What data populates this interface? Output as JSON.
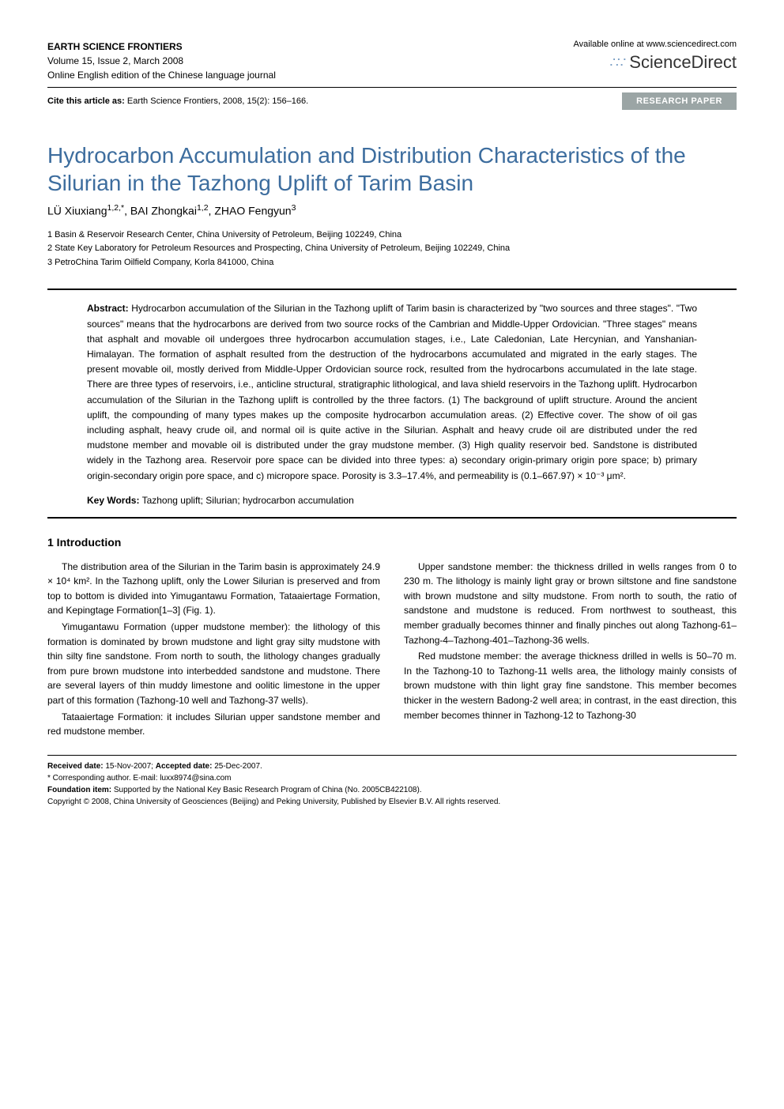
{
  "header": {
    "journal_name": "EARTH SCIENCE FRONTIERS",
    "volume_info": "Volume 15, Issue 2, March 2008",
    "edition_info": "Online English edition of the Chinese language journal",
    "available_text": "Available online at www.sciencedirect.com",
    "sd_brand": "ScienceDirect"
  },
  "citation": {
    "label": "Cite this article as:",
    "text": " Earth Science Frontiers, 2008, 15(2): 156–166.",
    "badge": "RESEARCH PAPER"
  },
  "title": "Hydrocarbon Accumulation and Distribution Characteristics of the Silurian in the Tazhong Uplift of Tarim Basin",
  "authors_html": "LÜ Xiuxiang<sup>1,2,*</sup>, BAI Zhongkai<sup>1,2</sup>, ZHAO Fengyun<sup>3</sup>",
  "affiliations": [
    "1 Basin & Reservoir Research Center, China University of Petroleum, Beijing 102249, China",
    "2 State Key Laboratory for Petroleum Resources and Prospecting, China University of Petroleum, Beijing 102249, China",
    "3 PetroChina Tarim Oilfield Company, Korla 841000, China"
  ],
  "abstract": {
    "label": "Abstract:",
    "text": " Hydrocarbon accumulation of the Silurian in the Tazhong uplift of Tarim basin is characterized by \"two sources and three stages\". \"Two sources\" means that the hydrocarbons are derived from two source rocks of the Cambrian and Middle-Upper Ordovician. \"Three stages\" means that asphalt and movable oil undergoes three hydrocarbon accumulation stages, i.e., Late Caledonian, Late Hercynian, and Yanshanian-Himalayan. The formation of asphalt resulted from the destruction of the hydrocarbons accumulated and migrated in the early stages. The present movable oil, mostly derived from Middle-Upper Ordovician source rock, resulted from the hydrocarbons accumulated in the late stage. There are three types of reservoirs, i.e., anticline structural, stratigraphic lithological, and lava shield reservoirs in the Tazhong uplift. Hydrocarbon accumulation of the Silurian in the Tazhong uplift is controlled by the three factors. (1) The background of uplift structure. Around the ancient uplift, the compounding of many types makes up the composite hydrocarbon accumulation areas. (2) Effective cover. The show of oil gas including asphalt, heavy crude oil, and normal oil is quite active in the Silurian. Asphalt and heavy crude oil are distributed under the red mudstone member and movable oil is distributed under the gray mudstone member. (3) High quality reservoir bed. Sandstone is distributed widely in the Tazhong area. Reservoir pore space can be divided into three types: a) secondary origin-primary origin pore space; b) primary origin-secondary origin pore space, and c) micropore space. Porosity is 3.3–17.4%, and permeability is (0.1–667.97) × 10⁻³ μm²."
  },
  "keywords": {
    "label": "Key Words:",
    "text": " Tazhong uplift; Silurian; hydrocarbon accumulation"
  },
  "section1": {
    "heading": "1   Introduction",
    "paragraphs": [
      "The distribution area of the Silurian in the Tarim basin is approximately 24.9 × 10⁴ km². In the Tazhong uplift, only the Lower Silurian is preserved and from top to bottom is divided into Yimugantawu Formation, Tataaiertage Formation, and Kepingtage Formation[1–3] (Fig. 1).",
      "Yimugantawu Formation (upper mudstone member): the lithology of this formation is dominated by brown mudstone and light gray silty mudstone with thin silty fine sandstone. From north to south, the lithology changes gradually from pure brown mudstone into interbedded sandstone and mudstone. There are several layers of thin muddy limestone and oolitic limestone in the upper part of this formation (Tazhong-10 well and Tazhong-37 wells).",
      "Tataaiertage Formation: it includes Silurian upper sandstone member and red mudstone member.",
      "Upper sandstone member: the thickness drilled in wells ranges from 0 to 230 m. The lithology is mainly light gray or brown siltstone and fine sandstone with brown mudstone and silty mudstone. From north to south, the ratio of sandstone and mudstone is reduced. From northwest to southeast, this member gradually becomes thinner and finally pinches out along Tazhong-61–Tazhong-4–Tazhong-401–Tazhong-36 wells.",
      "Red mudstone member: the average thickness drilled in wells is 50–70 m. In the Tazhong-10 to Tazhong-11 wells area, the lithology mainly consists of brown mudstone with thin light gray fine sandstone. This member becomes thicker in the western Badong-2 well area; in contrast, in the east direction, this member becomes thinner in Tazhong-12 to Tazhong-30"
    ]
  },
  "footer": {
    "received_label": "Received date:",
    "received_text": " 15-Nov-2007; ",
    "accepted_label": "Accepted date:",
    "accepted_text": " 25-Dec-2007.",
    "corresponding": "* Corresponding author. E-mail: luxx8974@sina.com",
    "foundation_label": "Foundation item:",
    "foundation_text": " Supported by the National Key Basic Research Program of China (No. 2005CB422108).",
    "copyright": "Copyright © 2008, China University of Geosciences (Beijing) and Peking University, Published by Elsevier B.V. All rights reserved."
  },
  "colors": {
    "title_color": "#3d6d9e",
    "badge_bg": "#9ba5a5",
    "sd_dots": "#7a9ec4"
  },
  "typography": {
    "title_fontsize": 28,
    "body_fontsize": 12,
    "abstract_fontsize": 12,
    "footer_fontsize": 10
  }
}
